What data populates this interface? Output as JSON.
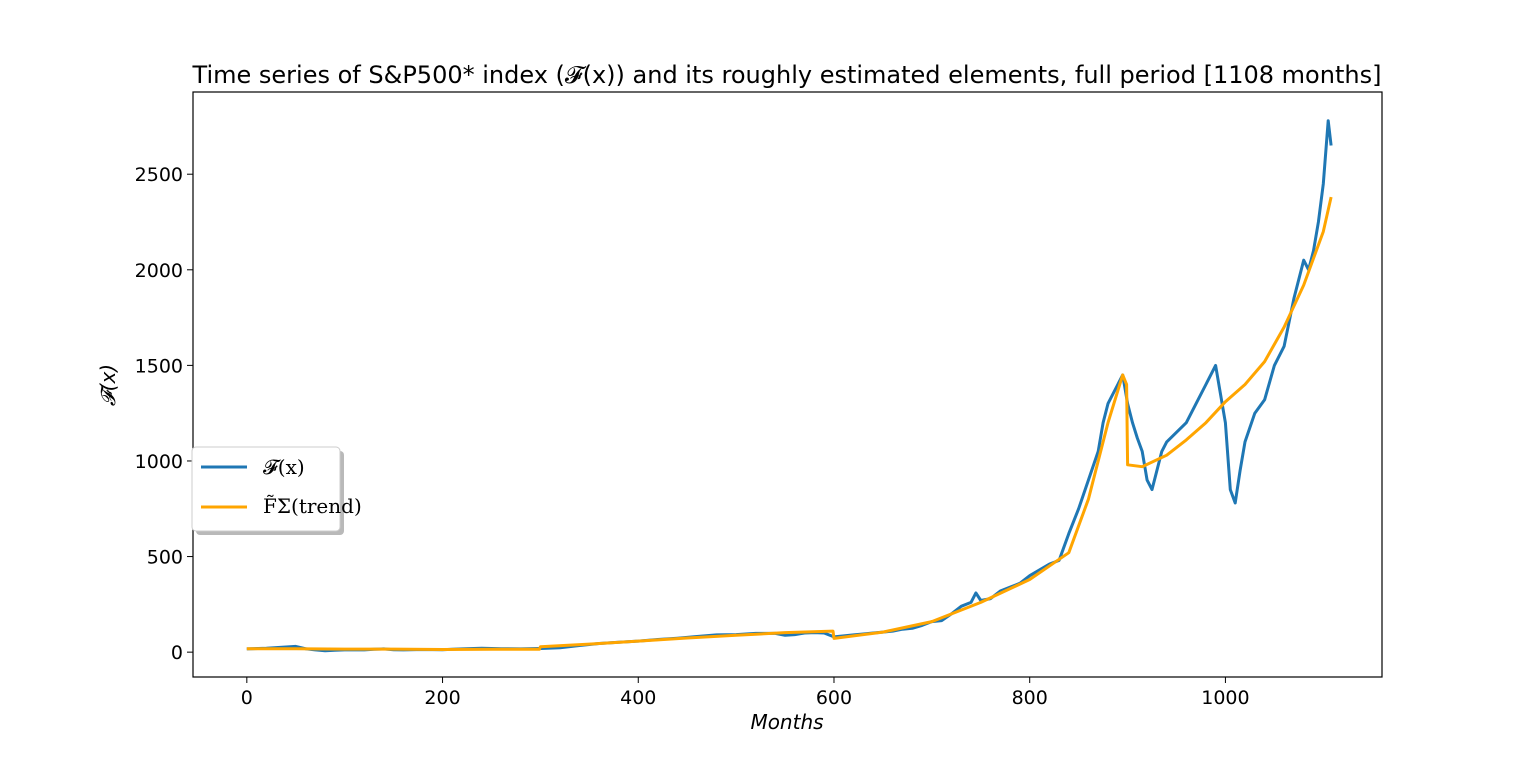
{
  "chart_data": {
    "type": "line",
    "title": "Time series of S&P500* index (𝓕(x)) and its roughly estimated elements, full period [1108 months]",
    "xlabel": "Months",
    "ylabel": "𝓕(x)",
    "xlim": [
      -55,
      1160
    ],
    "ylim": [
      -130,
      2930
    ],
    "xticks": [
      0,
      200,
      400,
      600,
      800,
      1000
    ],
    "yticks": [
      0,
      500,
      1000,
      1500,
      2000,
      2500
    ],
    "grid": false,
    "legend_position": "center-left",
    "legend": [
      {
        "label": "𝓕(x)",
        "color": "#1f77b4"
      },
      {
        "label": "F̃Σ(trend)",
        "color": "#ffa500"
      }
    ],
    "series": [
      {
        "name": "𝓕(x)",
        "color": "#1f77b4",
        "points": [
          [
            0,
            17
          ],
          [
            20,
            20
          ],
          [
            40,
            27
          ],
          [
            50,
            30
          ],
          [
            60,
            18
          ],
          [
            70,
            12
          ],
          [
            80,
            7
          ],
          [
            90,
            10
          ],
          [
            100,
            12
          ],
          [
            120,
            12
          ],
          [
            130,
            15
          ],
          [
            140,
            17
          ],
          [
            150,
            13
          ],
          [
            160,
            12
          ],
          [
            180,
            14
          ],
          [
            200,
            13
          ],
          [
            210,
            15
          ],
          [
            220,
            17
          ],
          [
            240,
            20
          ],
          [
            260,
            18
          ],
          [
            280,
            17
          ],
          [
            300,
            19
          ],
          [
            320,
            23
          ],
          [
            340,
            35
          ],
          [
            360,
            45
          ],
          [
            380,
            52
          ],
          [
            400,
            58
          ],
          [
            420,
            66
          ],
          [
            440,
            73
          ],
          [
            460,
            82
          ],
          [
            480,
            90
          ],
          [
            500,
            92
          ],
          [
            520,
            98
          ],
          [
            540,
            98
          ],
          [
            550,
            88
          ],
          [
            560,
            92
          ],
          [
            570,
            100
          ],
          [
            580,
            102
          ],
          [
            590,
            100
          ],
          [
            600,
            80
          ],
          [
            610,
            85
          ],
          [
            620,
            90
          ],
          [
            630,
            95
          ],
          [
            640,
            100
          ],
          [
            650,
            105
          ],
          [
            660,
            110
          ],
          [
            670,
            120
          ],
          [
            680,
            125
          ],
          [
            690,
            140
          ],
          [
            700,
            160
          ],
          [
            710,
            165
          ],
          [
            720,
            200
          ],
          [
            730,
            240
          ],
          [
            740,
            260
          ],
          [
            745,
            310
          ],
          [
            750,
            270
          ],
          [
            760,
            280
          ],
          [
            770,
            320
          ],
          [
            780,
            340
          ],
          [
            790,
            360
          ],
          [
            800,
            400
          ],
          [
            810,
            430
          ],
          [
            820,
            460
          ],
          [
            830,
            480
          ],
          [
            840,
            620
          ],
          [
            850,
            750
          ],
          [
            860,
            900
          ],
          [
            870,
            1050
          ],
          [
            875,
            1200
          ],
          [
            880,
            1300
          ],
          [
            890,
            1400
          ],
          [
            895,
            1450
          ],
          [
            900,
            1300
          ],
          [
            905,
            1200
          ],
          [
            910,
            1120
          ],
          [
            915,
            1050
          ],
          [
            920,
            900
          ],
          [
            925,
            850
          ],
          [
            930,
            950
          ],
          [
            935,
            1050
          ],
          [
            940,
            1100
          ],
          [
            950,
            1150
          ],
          [
            960,
            1200
          ],
          [
            970,
            1300
          ],
          [
            980,
            1400
          ],
          [
            990,
            1500
          ],
          [
            995,
            1350
          ],
          [
            1000,
            1200
          ],
          [
            1005,
            850
          ],
          [
            1010,
            780
          ],
          [
            1015,
            950
          ],
          [
            1020,
            1100
          ],
          [
            1030,
            1250
          ],
          [
            1040,
            1320
          ],
          [
            1050,
            1500
          ],
          [
            1060,
            1600
          ],
          [
            1070,
            1850
          ],
          [
            1080,
            2050
          ],
          [
            1085,
            2000
          ],
          [
            1090,
            2100
          ],
          [
            1095,
            2250
          ],
          [
            1100,
            2450
          ],
          [
            1105,
            2780
          ],
          [
            1108,
            2650
          ]
        ]
      },
      {
        "name": "F̃Σ(trend)",
        "color": "#ffa500",
        "points": [
          [
            0,
            18
          ],
          [
            50,
            18
          ],
          [
            100,
            16
          ],
          [
            150,
            16
          ],
          [
            200,
            14
          ],
          [
            250,
            15
          ],
          [
            299,
            15
          ],
          [
            300,
            28
          ],
          [
            350,
            42
          ],
          [
            400,
            58
          ],
          [
            450,
            74
          ],
          [
            500,
            88
          ],
          [
            550,
            102
          ],
          [
            599,
            110
          ],
          [
            600,
            72
          ],
          [
            650,
            105
          ],
          [
            700,
            160
          ],
          [
            750,
            260
          ],
          [
            800,
            380
          ],
          [
            840,
            520
          ],
          [
            860,
            800
          ],
          [
            880,
            1200
          ],
          [
            895,
            1450
          ],
          [
            899,
            1400
          ],
          [
            900,
            980
          ],
          [
            915,
            970
          ],
          [
            940,
            1030
          ],
          [
            960,
            1110
          ],
          [
            980,
            1200
          ],
          [
            1000,
            1310
          ],
          [
            1020,
            1400
          ],
          [
            1040,
            1520
          ],
          [
            1060,
            1700
          ],
          [
            1080,
            1920
          ],
          [
            1100,
            2200
          ],
          [
            1108,
            2380
          ]
        ]
      }
    ]
  }
}
